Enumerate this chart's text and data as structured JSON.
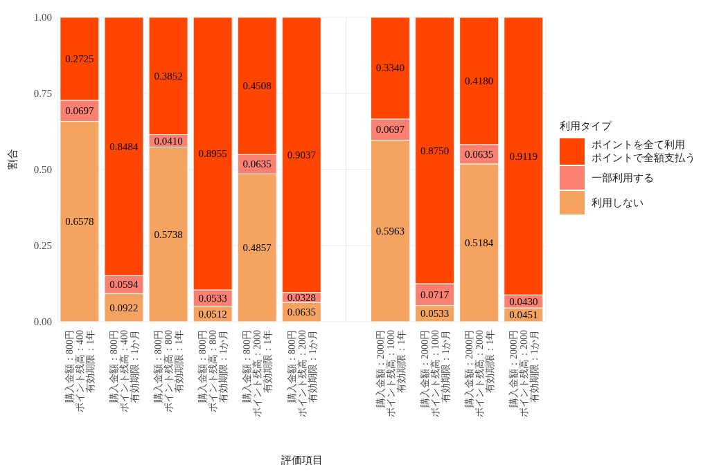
{
  "chart_data": {
    "type": "bar",
    "stacked": true,
    "xlabel": "評価項目",
    "ylabel": "割合",
    "legend_title": "利用タイプ",
    "legend": "right",
    "grid": true,
    "categories": [
      "購入金額：800円ポイント残高：400有効期限：1年",
      "購入金額：800円ポイント残高：400有効期限：1か月",
      "購入金額：800円ポイント残高：800有効期限：1年",
      "購入金額：800円ポイント残高：800有効期限：1か月",
      "購入金額：800円ポイント残高：2000有効期限：1年",
      "購入金額：800円ポイント残高：2000有効期限：1か月",
      null,
      "購入金額：2000円ポイント残高：1000有効期限：1年",
      "購入金額：2000円ポイント残高：1000有効期限：1か月",
      "購入金額：2000円ポイント残高：2000有効期限：1年",
      "購入金額：2000円ポイント残高：2000有効期限：1か月"
    ],
    "ylim": [
      0,
      1
    ],
    "yticks": [
      {
        "value": 0,
        "label": "0.00"
      },
      {
        "value": 0.25,
        "label": "0.25"
      },
      {
        "value": 0.5,
        "label": "0.50"
      },
      {
        "value": 0.75,
        "label": "0.75"
      },
      {
        "value": 1,
        "label": "1.00"
      }
    ],
    "series": [
      {
        "name": "利用しない",
        "color": "#f4a460",
        "values": [
          0.6578,
          0.0922,
          0.5738,
          0.0512,
          0.4857,
          0.0635,
          null,
          0.5963,
          0.0533,
          0.5184,
          0.0451
        ],
        "value_labels": [
          "0.6578",
          "0.0922",
          "0.5738",
          "0.0512",
          "0.4857",
          "0.0635",
          null,
          "0.5963",
          "0.0533",
          "0.5184",
          "0.0451"
        ]
      },
      {
        "name": "一部利用する",
        "color": "#fa8072",
        "values": [
          0.0697,
          0.0594,
          0.041,
          0.0533,
          0.0635,
          0.0328,
          null,
          0.0697,
          0.0717,
          0.0635,
          0.043
        ],
        "value_labels": [
          "0.0697",
          "0.0594",
          "0.0410",
          "0.0533",
          "0.0635",
          "0.0328",
          null,
          "0.0697",
          "0.0717",
          "0.0635",
          "0.0430"
        ]
      },
      {
        "name": "ポイントを全て利用ポイントで全額支払う",
        "color": "#ff4500",
        "values": [
          0.2725,
          0.8484,
          0.3852,
          0.8955,
          0.4508,
          0.9037,
          null,
          0.334,
          0.875,
          0.418,
          0.9119
        ],
        "value_labels": [
          "0.2725",
          "0.8484",
          "0.3852",
          "0.8955",
          "0.4508",
          "0.9037",
          null,
          "0.3340",
          "0.8750",
          "0.4180",
          "0.9119"
        ]
      }
    ]
  }
}
